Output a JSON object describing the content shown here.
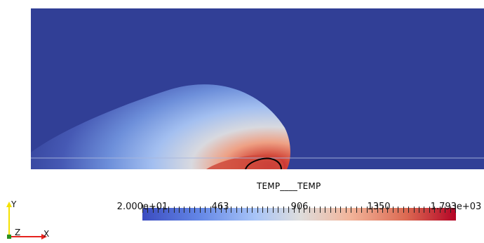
{
  "view": {
    "background": "#ffffff",
    "domain_color": "#313f96",
    "interface_line_color": "#a9b7dd",
    "contour_color": "#000000"
  },
  "field_label": "TEMP____TEMP",
  "colorbar": {
    "ticks": [
      "2.000e+01",
      "463",
      "906",
      "1350",
      "1.793e+03"
    ],
    "colors": [
      "#3b4cc0",
      "#7394ee",
      "#b8cff7",
      "#dddddd",
      "#f2b59b",
      "#dc6a52",
      "#b40426"
    ]
  },
  "orientation_axes": {
    "x_label": "X",
    "y_label": "Y",
    "z_label": "Z",
    "x_color": "#e6231e",
    "y_color": "#f5e100",
    "z_color": "#2a8f1f"
  }
}
